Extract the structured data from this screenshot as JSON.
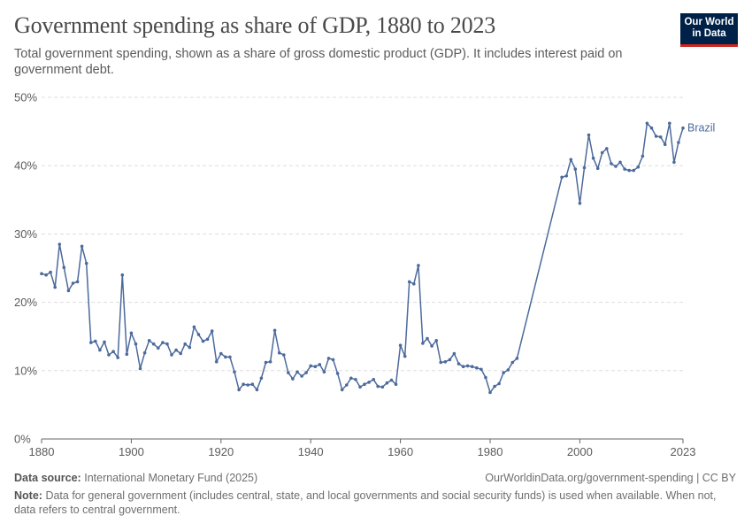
{
  "header": {
    "title": "Government spending as share of GDP, 1880 to 2023",
    "subtitle": "Total government spending, shown as a share of gross domestic product (GDP). It includes interest paid on government debt.",
    "logo_line1": "Our World",
    "logo_line2": "in Data"
  },
  "footer": {
    "source_label": "Data source:",
    "source_text": "International Monetary Fund (2025)",
    "url": "OurWorldinData.org/government-spending | CC BY",
    "note_label": "Note:",
    "note_text": "Data for general government (includes central, state, and local governments and social security funds) is used when available. When not, data refers to central government."
  },
  "colors": {
    "series": "#4c6a9c",
    "grid": "#dddddd",
    "axis": "#666666",
    "text": "#5b5b5b"
  },
  "chart_data": {
    "type": "line",
    "xlim": [
      1880,
      2023
    ],
    "ylim": [
      0,
      50
    ],
    "x_ticks": [
      1880,
      1900,
      1920,
      1940,
      1960,
      1980,
      2000,
      2023
    ],
    "y_ticks": [
      0,
      10,
      20,
      30,
      40,
      50
    ],
    "y_tick_labels": [
      "0%",
      "10%",
      "20%",
      "30%",
      "40%",
      "50%"
    ],
    "grid": "horizontal dashed",
    "series": [
      {
        "name": "Brazil",
        "x": [
          1880,
          1881,
          1882,
          1883,
          1884,
          1885,
          1886,
          1887,
          1888,
          1889,
          1890,
          1891,
          1892,
          1893,
          1894,
          1895,
          1896,
          1897,
          1898,
          1899,
          1900,
          1901,
          1902,
          1903,
          1904,
          1905,
          1906,
          1907,
          1908,
          1909,
          1910,
          1911,
          1912,
          1913,
          1914,
          1915,
          1916,
          1917,
          1918,
          1919,
          1920,
          1921,
          1922,
          1923,
          1924,
          1925,
          1926,
          1927,
          1928,
          1929,
          1930,
          1931,
          1932,
          1933,
          1934,
          1935,
          1936,
          1937,
          1938,
          1939,
          1940,
          1941,
          1942,
          1943,
          1944,
          1945,
          1946,
          1947,
          1948,
          1949,
          1950,
          1951,
          1952,
          1953,
          1954,
          1955,
          1956,
          1957,
          1958,
          1959,
          1960,
          1961,
          1962,
          1963,
          1964,
          1965,
          1966,
          1967,
          1968,
          1969,
          1970,
          1971,
          1972,
          1973,
          1974,
          1975,
          1976,
          1977,
          1978,
          1979,
          1980,
          1981,
          1982,
          1983,
          1984,
          1985,
          1986,
          1996,
          1997,
          1998,
          1999,
          2000,
          2001,
          2002,
          2003,
          2004,
          2005,
          2006,
          2007,
          2008,
          2009,
          2010,
          2011,
          2012,
          2013,
          2014,
          2015,
          2016,
          2017,
          2018,
          2019,
          2020,
          2021,
          2022,
          2023
        ],
        "y": [
          24.2,
          24.0,
          24.4,
          22.2,
          28.5,
          25.1,
          21.7,
          22.8,
          23.0,
          28.2,
          25.7,
          14.1,
          14.3,
          13.0,
          14.2,
          12.3,
          12.8,
          11.9,
          24.0,
          12.4,
          15.5,
          13.9,
          10.3,
          12.6,
          14.4,
          13.9,
          13.3,
          14.1,
          13.9,
          12.3,
          13.0,
          12.5,
          13.9,
          13.4,
          16.4,
          15.3,
          14.3,
          14.6,
          15.8,
          11.3,
          12.5,
          12.0,
          12.0,
          9.8,
          7.2,
          8.0,
          7.9,
          8.0,
          7.2,
          8.9,
          11.2,
          11.3,
          15.9,
          12.6,
          12.3,
          9.7,
          8.8,
          9.8,
          9.2,
          9.7,
          10.7,
          10.6,
          10.9,
          9.8,
          11.8,
          11.6,
          9.6,
          7.2,
          7.9,
          8.9,
          8.7,
          7.6,
          8.0,
          8.3,
          8.7,
          7.7,
          7.6,
          8.2,
          8.6,
          8.0,
          13.7,
          12.1,
          23.0,
          22.7,
          25.4,
          14.0,
          14.7,
          13.6,
          14.4,
          11.2,
          11.3,
          11.6,
          12.5,
          11.0,
          10.6,
          10.7,
          10.6,
          10.4,
          10.2,
          9.0,
          6.8,
          7.7,
          8.1,
          9.7,
          10.1,
          11.2,
          11.8,
          38.3,
          38.5,
          40.9,
          39.5,
          34.5,
          39.7,
          44.5,
          41.1,
          39.6,
          41.9,
          42.5,
          40.3,
          39.9,
          40.5,
          39.5,
          39.3,
          39.3,
          39.8,
          41.4,
          46.2,
          45.5,
          44.3,
          44.2,
          43.1,
          46.2,
          40.5,
          43.4,
          45.5
        ]
      }
    ]
  }
}
